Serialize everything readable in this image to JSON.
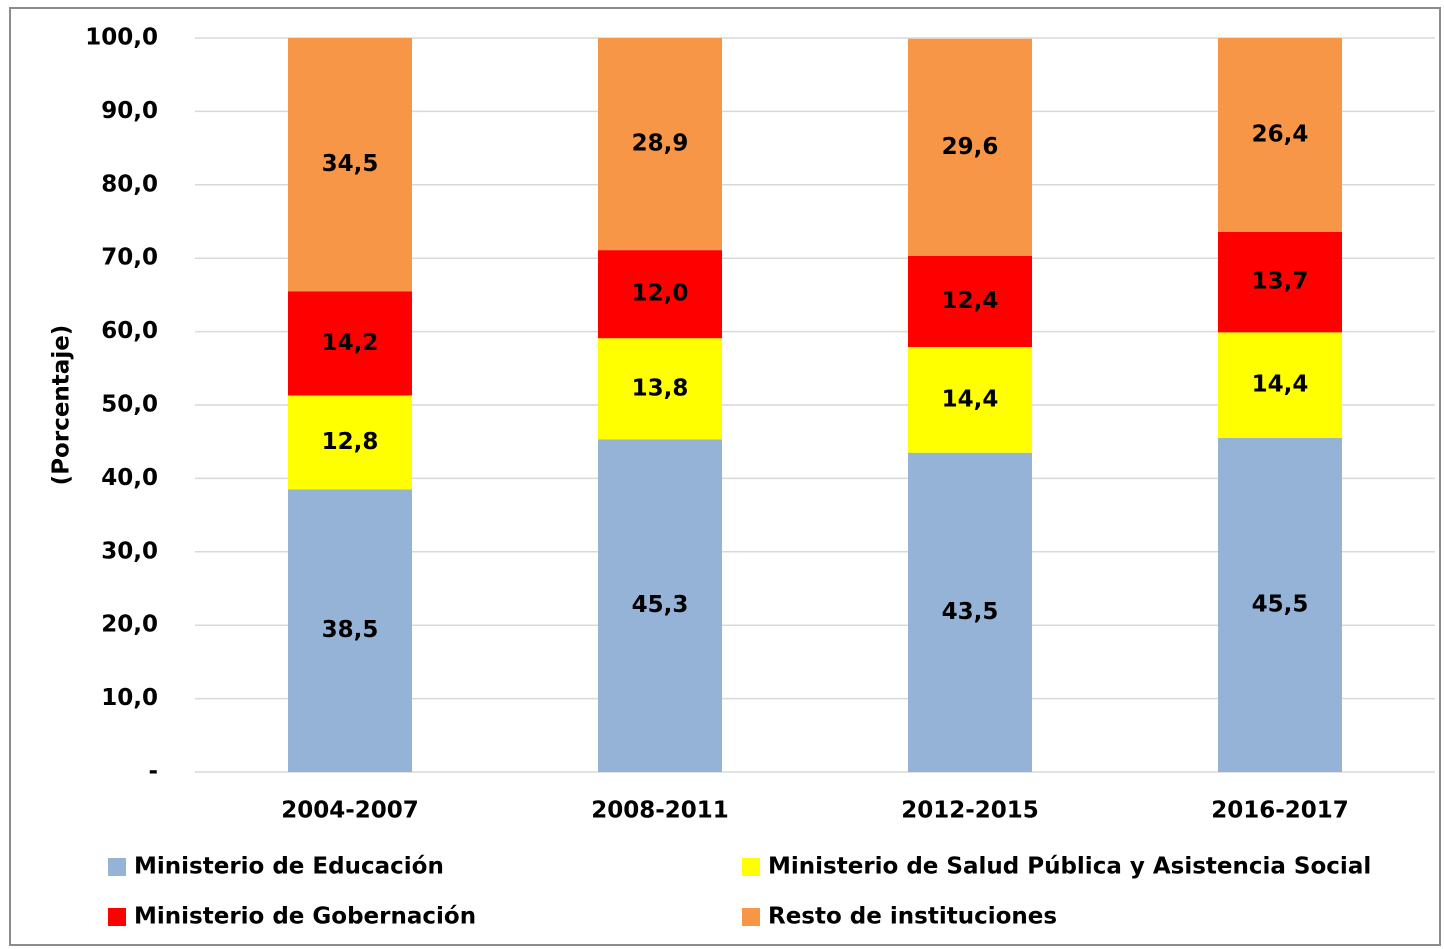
{
  "chart_data": {
    "type": "stacked_bar",
    "y_label": "(Porcentaje)",
    "categories": [
      "2004-2007",
      "2008-2011",
      "2012-2015",
      "2016-2017"
    ],
    "series": [
      {
        "name": "Ministerio de Educación",
        "color": "#95b3d7",
        "values": [
          38.5,
          45.3,
          43.5,
          45.5
        ],
        "value_labels": [
          "38,5",
          "45,3",
          "43,5",
          "45,5"
        ]
      },
      {
        "name": "Ministerio de Salud Pública y Asistencia Social",
        "color": "#ffff00",
        "values": [
          12.8,
          13.8,
          14.4,
          14.4
        ],
        "value_labels": [
          "12,8",
          "13,8",
          "14,4",
          "14,4"
        ]
      },
      {
        "name": "Ministerio de Gobernación",
        "color": "#ff0000",
        "values": [
          14.2,
          12.0,
          12.4,
          13.7
        ],
        "value_labels": [
          "14,2",
          "12,0",
          "12,4",
          "13,7"
        ]
      },
      {
        "name": "Resto de instituciones",
        "color": "#f79646",
        "values": [
          34.5,
          28.9,
          29.6,
          26.4
        ],
        "value_labels": [
          "34,5",
          "28,9",
          "29,6",
          "26,4"
        ]
      }
    ],
    "ylim": [
      0,
      100
    ],
    "yticks": [
      {
        "value": 0,
        "label": "-"
      },
      {
        "value": 10,
        "label": "10,0"
      },
      {
        "value": 20,
        "label": "20,0"
      },
      {
        "value": 30,
        "label": "30,0"
      },
      {
        "value": 40,
        "label": "40,0"
      },
      {
        "value": 50,
        "label": "50,0"
      },
      {
        "value": 60,
        "label": "60,0"
      },
      {
        "value": 70,
        "label": "70,0"
      },
      {
        "value": 80,
        "label": "80,0"
      },
      {
        "value": 90,
        "label": "90,0"
      },
      {
        "value": 100,
        "label": "100,0"
      }
    ],
    "grid": true
  }
}
